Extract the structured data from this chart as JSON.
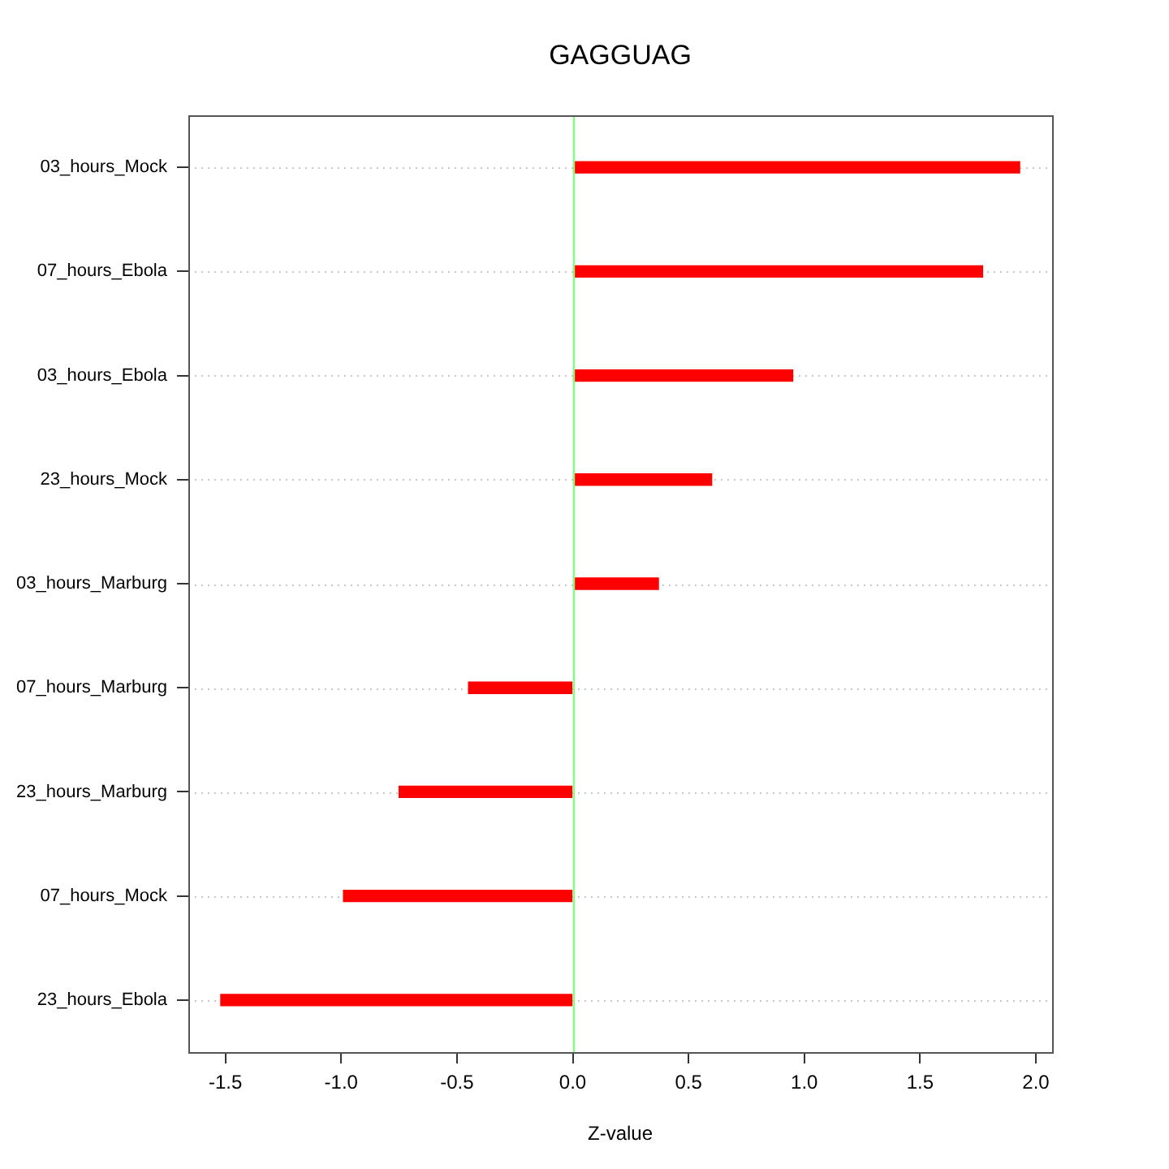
{
  "chart_data": {
    "type": "bar",
    "orientation": "horizontal",
    "title": "GAGGUAG",
    "xlabel": "Z-value",
    "categories": [
      "03_hours_Mock",
      "07_hours_Ebola",
      "03_hours_Ebola",
      "23_hours_Mock",
      "03_hours_Marburg",
      "07_hours_Marburg",
      "23_hours_Marburg",
      "07_hours_Mock",
      "23_hours_Ebola"
    ],
    "values": [
      1.93,
      1.77,
      0.95,
      0.6,
      0.37,
      -0.45,
      -0.75,
      -0.99,
      -1.52
    ],
    "color": "#ff0000",
    "xlim": [
      -1.66,
      2.07
    ],
    "xticks": [
      -1.5,
      {
        "value": -1,
        "label": "-1.0"
      },
      -0.5,
      {
        "value": 0,
        "label": "0.0"
      },
      0.5,
      {
        "value": 1,
        "label": "1.0"
      },
      1.5,
      {
        "value": 2,
        "label": "2.0"
      }
    ],
    "grid": "y",
    "ref_lines": [
      {
        "axis": "x",
        "value": 0,
        "color": "#80ff80"
      }
    ]
  }
}
